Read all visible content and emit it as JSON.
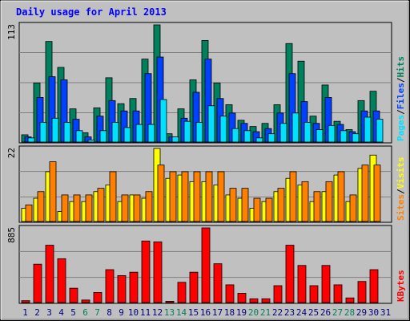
{
  "colors": {
    "background": "#c0c0c0",
    "title": "#0000ff",
    "hits": "#00805c",
    "files": "#0040ff",
    "pages": "#00e0ff",
    "visits": "#ffff00",
    "sites": "#ff8000",
    "kbytes": "#ff0000",
    "weekend": "#00805c",
    "weekday": "#000080"
  },
  "chart_data": {
    "type": "bar",
    "title": "Daily usage for April 2013",
    "categories": [
      "1",
      "2",
      "3",
      "4",
      "5",
      "6",
      "7",
      "8",
      "9",
      "10",
      "11",
      "12",
      "13",
      "14",
      "15",
      "16",
      "17",
      "18",
      "19",
      "20",
      "21",
      "22",
      "23",
      "24",
      "25",
      "26",
      "27",
      "28",
      "29",
      "30",
      "31"
    ],
    "weekend_days": [
      "6",
      "7",
      "13",
      "14",
      "20",
      "21",
      "27",
      "28"
    ],
    "panels": [
      {
        "name": "hits-files-pages",
        "max_label": "113",
        "ylim": [
          0,
          113
        ],
        "legend": [
          "Pages",
          "/",
          "Files",
          "/",
          "Hits"
        ],
        "series": [
          {
            "name": "Hits",
            "values": [
              7,
              57,
              97,
              72,
              32,
              9,
              33,
              62,
              37,
              42,
              80,
              113,
              8,
              32,
              60,
              98,
              57,
              36,
              21,
              15,
              18,
              36,
              95,
              78,
              25,
              55,
              20,
              12,
              40,
              49,
              0
            ]
          },
          {
            "name": "Files",
            "values": [
              5,
              43,
              63,
              60,
              22,
              5,
              25,
              40,
              30,
              30,
              66,
              82,
              5,
              23,
              48,
              80,
              42,
              28,
              18,
              10,
              13,
              28,
              66,
              39,
              18,
              43,
              17,
              10,
              30,
              30,
              0
            ]
          },
          {
            "name": "Pages",
            "values": [
              4,
              19,
              23,
              19,
              11,
              2,
              11,
              19,
              14,
              17,
              17,
              41,
              5,
              20,
              19,
              35,
              25,
              13,
              11,
              4,
              8,
              18,
              28,
              19,
              12,
              16,
              11,
              8,
              24,
              22,
              0
            ]
          }
        ]
      },
      {
        "name": "visits-sites",
        "max_label": "22",
        "ylim": [
          0,
          22
        ],
        "legend": [
          "Sites",
          "/",
          "Visits"
        ],
        "series": [
          {
            "name": "Visits",
            "values": [
              4,
              7,
              15,
              3,
              6,
              6,
              9,
              11,
              6,
              8,
              7,
              22,
              13,
              14,
              12,
              12,
              11,
              8,
              7,
              4,
              6,
              9,
              13,
              11,
              6,
              9,
              14,
              6,
              16,
              20,
              0
            ]
          },
          {
            "name": "Sites",
            "values": [
              5,
              9,
              18,
              8,
              8,
              8,
              10,
              15,
              8,
              8,
              9,
              17,
              15,
              15,
              15,
              15,
              15,
              10,
              10,
              7,
              7,
              10,
              15,
              12,
              9,
              12,
              15,
              8,
              17,
              17,
              0
            ]
          }
        ]
      },
      {
        "name": "kbytes",
        "max_label": "885",
        "ylim": [
          0,
          885
        ],
        "legend": [
          "KBytes"
        ],
        "series": [
          {
            "name": "KBytes",
            "values": [
              22,
              455,
              680,
              520,
              170,
              30,
              120,
              390,
              320,
              360,
              730,
              720,
              15,
              240,
              360,
              885,
              460,
              210,
              110,
              45,
              45,
              200,
              680,
              440,
              200,
              440,
              210,
              55,
              250,
              390,
              0
            ]
          }
        ]
      }
    ]
  }
}
